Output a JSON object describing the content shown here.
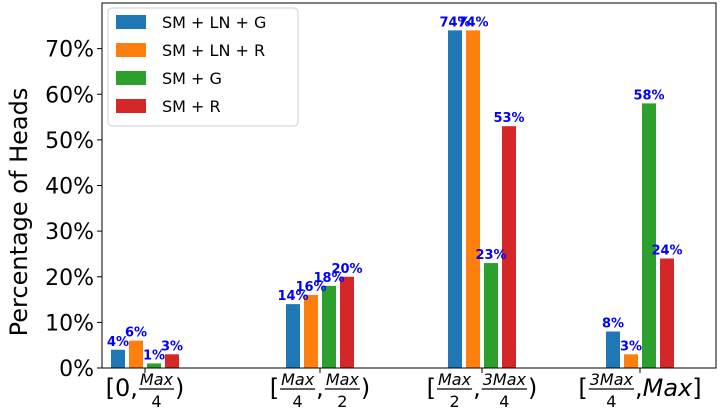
{
  "chart_data": {
    "type": "bar",
    "ylabel": "Percentage of Heads",
    "ylim": [
      0,
      80
    ],
    "y_ticks": [
      "0%",
      "10%",
      "20%",
      "30%",
      "40%",
      "50%",
      "60%",
      "70%"
    ],
    "categories": [
      "[0, Max/4)",
      "[Max/4, Max/2)",
      "[Max/2, 3Max/4)",
      "[3Max/4, Max]"
    ],
    "category_labels": [
      {
        "left": "[0,",
        "num": "Max",
        "den": "4",
        "right": ")"
      },
      {
        "left": "[",
        "num": "Max",
        "den": "4",
        "mid": ",",
        "num2": "Max",
        "den2": "2",
        "right": ")"
      },
      {
        "left": "[",
        "num": "Max",
        "den": "2",
        "mid": ",",
        "num2": "3Max",
        "den2": "4",
        "right": ")"
      },
      {
        "left": "[",
        "num": "3Max",
        "den": "4",
        "mid": ",",
        "after": "Max",
        "right": "]"
      }
    ],
    "series": [
      {
        "name": "SM + LN + G",
        "color": "#1f77b4",
        "values": [
          4,
          14,
          74,
          8
        ],
        "labels": [
          "4%",
          "14%",
          "74%",
          "8%"
        ]
      },
      {
        "name": "SM + LN + R",
        "color": "#ff7f0e",
        "values": [
          6,
          16,
          74,
          3
        ],
        "labels": [
          "6%",
          "16%",
          "74%",
          "3%"
        ]
      },
      {
        "name": "SM + G",
        "color": "#2ca02c",
        "values": [
          1,
          18,
          23,
          58
        ],
        "labels": [
          "1%",
          "18%",
          "23%",
          "58%"
        ]
      },
      {
        "name": "SM + R",
        "color": "#d62728",
        "values": [
          3,
          20,
          53,
          24
        ],
        "labels": [
          "3%",
          "20%",
          "53%",
          "24%"
        ]
      }
    ],
    "legend_position": "top-left",
    "grid": false
  }
}
